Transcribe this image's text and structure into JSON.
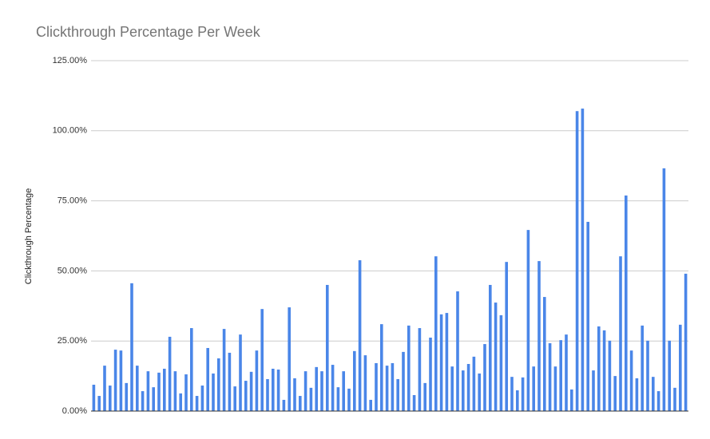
{
  "chart_data": {
    "type": "bar",
    "title": "Clickthrough Percentage Per Week",
    "y_label": "Clickthrough Percentage",
    "categories": [
      null,
      null,
      null,
      null,
      null,
      null,
      null,
      null,
      null,
      null,
      null,
      null,
      null,
      null,
      null,
      null,
      null,
      null,
      null,
      null,
      null,
      null,
      null,
      null,
      null,
      null,
      null,
      null,
      null,
      null,
      null,
      null,
      null,
      null,
      null,
      null,
      null,
      null,
      null,
      null,
      null,
      null,
      null,
      null,
      null,
      null,
      null,
      null,
      null,
      null,
      null,
      null,
      null,
      null,
      null,
      null,
      null,
      null,
      null,
      null,
      null,
      null,
      null,
      null,
      null,
      null,
      null,
      null,
      null,
      null,
      null,
      null,
      null,
      null,
      null,
      null,
      null,
      null,
      null,
      null,
      null,
      null,
      null,
      null,
      null,
      null,
      null,
      null,
      null,
      null,
      null,
      null,
      null,
      null,
      null,
      null,
      null,
      null,
      null,
      null,
      null,
      null,
      null,
      null,
      null,
      null,
      null,
      null,
      null,
      null
    ],
    "values": [
      9.4,
      5.4,
      16.2,
      9.1,
      21.9,
      21.6,
      10,
      45.6,
      16.2,
      7.1,
      14.2,
      8.5,
      13.7,
      15.1,
      26.5,
      14.2,
      6.3,
      13.1,
      29.6,
      5.4,
      9.1,
      22.5,
      13.4,
      18.8,
      29.3,
      20.8,
      8.8,
      27.3,
      10.8,
      14,
      21.6,
      36.4,
      11.4,
      15.1,
      14.8,
      4,
      37,
      11.7,
      5.4,
      14.2,
      8.3,
      15.7,
      14.2,
      45,
      16.5,
      8.5,
      14.2,
      8,
      21.4,
      53.8,
      19.9,
      4,
      17.1,
      31,
      16.2,
      17.1,
      11.4,
      21.1,
      30.5,
      5.7,
      29.6,
      10,
      26.2,
      55.2,
      34.5,
      35,
      15.9,
      42.7,
      14.5,
      16.8,
      19.4,
      13.4,
      23.9,
      45,
      38.7,
      34.2,
      53.2,
      12.2,
      7.4,
      12,
      64.6,
      15.9,
      53.5,
      40.7,
      24.2,
      15.9,
      25.3,
      27.3,
      7.7,
      107,
      107.9,
      67.5,
      14.5,
      30.2,
      28.8,
      25.1,
      12.5,
      55.2,
      76.9,
      21.6,
      11.7,
      30.5,
      25.1,
      12.2,
      7.1,
      86.6,
      25.1,
      8.3,
      30.8,
      49
    ],
    "color": "#4a86e8",
    "ylim": [
      0,
      125
    ],
    "yticks": [
      {
        "value": 0,
        "label": "0.00%"
      },
      {
        "value": 25,
        "label": "25.00%"
      },
      {
        "value": 50,
        "label": "50.00%"
      },
      {
        "value": 75,
        "label": "75.00%"
      },
      {
        "value": 100,
        "label": "100.00%"
      },
      {
        "value": 125,
        "label": "125.00%"
      }
    ],
    "grid": true
  }
}
